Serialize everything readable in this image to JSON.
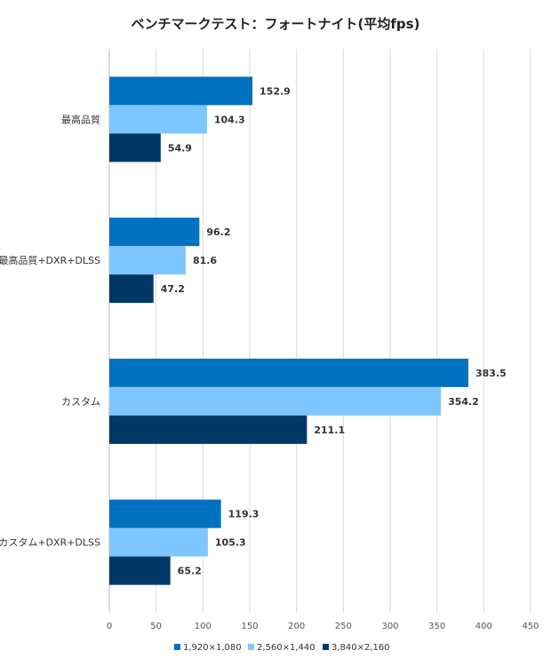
{
  "chart_data": {
    "type": "bar",
    "orientation": "horizontal",
    "title": "ベンチマークテスト：フォートナイト(平均fps)",
    "categories": [
      "最高品質",
      "最高品質+DXR+DLSS",
      "カスタム",
      "カスタム+DXR+DLSS"
    ],
    "series": [
      {
        "name": "1,920×1,080",
        "color": "#0070C0",
        "values": [
          152.9,
          96.2,
          383.5,
          119.3
        ]
      },
      {
        "name": "2,560×1,440",
        "color": "#7DC6FF",
        "values": [
          104.3,
          81.6,
          354.2,
          105.3
        ]
      },
      {
        "name": "3,840×2,160",
        "color": "#003865",
        "values": [
          54.9,
          47.2,
          211.1,
          65.2
        ]
      }
    ],
    "xlim": [
      0,
      450
    ],
    "xticks": [
      "0",
      "50",
      "100",
      "150",
      "200",
      "250",
      "300",
      "350",
      "400",
      "450"
    ],
    "grid": true,
    "legend_position": "bottom"
  }
}
